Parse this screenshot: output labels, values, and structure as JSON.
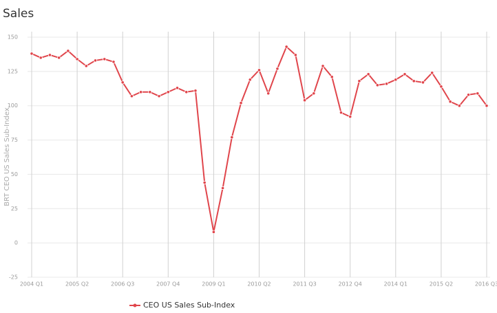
{
  "chart_data": {
    "type": "line",
    "title": "Sales",
    "y_label": "BRT CEO US Sales Sub-Index",
    "categories": [
      "2004 Q1",
      null,
      null,
      null,
      null,
      "2005 Q2",
      null,
      null,
      null,
      null,
      "2006 Q3",
      null,
      null,
      null,
      null,
      "2007 Q4",
      null,
      null,
      null,
      null,
      "2009 Q1",
      null,
      null,
      null,
      null,
      "2010 Q2",
      null,
      null,
      null,
      null,
      "2011 Q3",
      null,
      null,
      null,
      null,
      "2012 Q4",
      null,
      null,
      null,
      null,
      "2014 Q1",
      null,
      null,
      null,
      null,
      "2015 Q2",
      null,
      null,
      null,
      null,
      "2016 Q3"
    ],
    "series": [
      {
        "name": "CEO US Sales Sub-Index",
        "color": "#e0454b",
        "values": [
          138,
          135,
          137,
          135,
          140,
          134,
          129,
          133,
          134,
          132,
          117,
          107,
          110,
          110,
          107,
          110,
          113,
          110,
          111,
          44,
          8,
          40,
          77,
          102,
          119,
          126,
          109,
          127,
          143,
          137,
          104,
          109,
          129,
          121,
          95,
          92,
          118,
          123,
          115,
          116,
          119,
          123,
          118,
          117,
          124,
          114,
          103,
          100,
          108,
          109,
          100
        ]
      }
    ],
    "ylim": [
      -25,
      150
    ],
    "yticks": [
      -25,
      0,
      25,
      50,
      75,
      100,
      125,
      150
    ],
    "grid": true,
    "legend": "bottom"
  }
}
